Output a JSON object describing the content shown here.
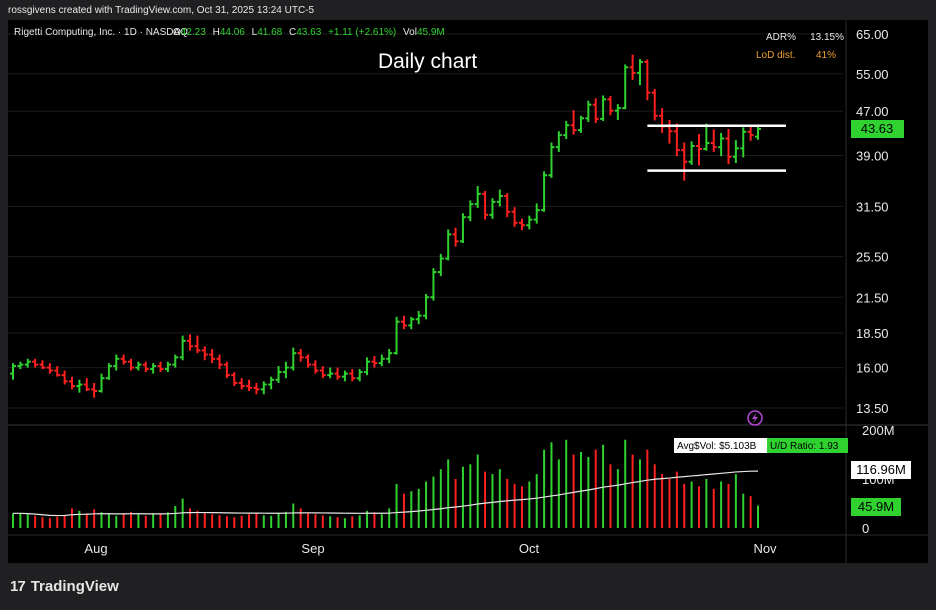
{
  "header": {
    "attribution": "rossgivens created with TradingView.com, Oct 31, 2025 13:24 UTC-5"
  },
  "legend": {
    "symbol": "Rigetti Computing, Inc. · 1D · NASDAQ",
    "o_label": "O",
    "o": "42.23",
    "h_label": "H",
    "h": "44.06",
    "l_label": "L",
    "l": "41.68",
    "c_label": "C",
    "c": "43.63",
    "change": "+1.11 (+2.61%)",
    "vol_label": "Vol",
    "vol": "45.9M"
  },
  "annotation": "Daily chart",
  "stats": {
    "adr_label": "ADR%",
    "adr": "13.15%",
    "lod_label": "LoD dist.",
    "lod": "41%"
  },
  "footer": {
    "brand": "TradingView"
  },
  "colors": {
    "up": "#2fd22f",
    "down": "#ff2020",
    "bg": "#000000",
    "price_tag": "#2fd22f",
    "lod": "#f0a030",
    "ma": "#e8e8e8",
    "level_lines": "#ffffff"
  },
  "chart_data": {
    "type": "ohlc",
    "price_scale": "log",
    "price_ticks": [
      "65.00",
      "55.00",
      "47.00",
      "39.00",
      "31.50",
      "25.50",
      "21.50",
      "18.50",
      "16.00",
      "13.50"
    ],
    "price_tick_values": [
      65,
      55,
      47,
      39,
      31.5,
      25.5,
      21.5,
      18.5,
      16,
      13.5
    ],
    "last_price_label": "43.63",
    "x_ticks": [
      "Aug",
      "Sep",
      "Oct",
      "Nov"
    ],
    "volume_ticks": [
      "200M",
      "100M",
      "0"
    ],
    "volume_tick_values": [
      200,
      100,
      0
    ],
    "avg_vol_label": "Avg$Vol: $5.103B",
    "ud_ratio_label": "U/D Ratio: 1.93",
    "volume_ma_label": "116.96M",
    "last_volume_label": "45.9M",
    "horizontal_levels": [
      44.2,
      36.6
    ],
    "bars_ohlc": [
      [
        15.6,
        16.3,
        15.2,
        16.1
      ],
      [
        16.1,
        16.4,
        15.9,
        16.2
      ],
      [
        16.2,
        16.6,
        16.0,
        16.4
      ],
      [
        16.4,
        16.6,
        16.0,
        16.2
      ],
      [
        16.2,
        16.5,
        15.9,
        16.0
      ],
      [
        16.0,
        16.3,
        15.6,
        15.8
      ],
      [
        15.8,
        16.1,
        15.4,
        15.5
      ],
      [
        15.5,
        15.8,
        14.9,
        15.1
      ],
      [
        15.1,
        15.4,
        14.6,
        14.8
      ],
      [
        14.8,
        15.2,
        14.4,
        14.9
      ],
      [
        14.9,
        15.3,
        14.5,
        14.6
      ],
      [
        14.6,
        15.0,
        14.1,
        14.5
      ],
      [
        14.5,
        15.6,
        14.4,
        15.3
      ],
      [
        15.3,
        16.3,
        15.2,
        16.1
      ],
      [
        16.1,
        16.9,
        15.8,
        16.6
      ],
      [
        16.6,
        16.9,
        16.2,
        16.4
      ],
      [
        16.4,
        16.6,
        15.8,
        16.0
      ],
      [
        16.0,
        16.4,
        15.8,
        16.2
      ],
      [
        16.2,
        16.4,
        15.7,
        15.9
      ],
      [
        15.9,
        16.3,
        15.6,
        16.1
      ],
      [
        16.1,
        16.4,
        15.7,
        15.9
      ],
      [
        15.9,
        16.4,
        15.7,
        16.2
      ],
      [
        16.2,
        16.9,
        16.0,
        16.7
      ],
      [
        16.7,
        18.3,
        16.5,
        17.9
      ],
      [
        17.9,
        18.4,
        17.2,
        17.5
      ],
      [
        17.5,
        18.3,
        17.0,
        17.2
      ],
      [
        17.2,
        17.5,
        16.5,
        16.9
      ],
      [
        16.9,
        17.3,
        16.3,
        16.6
      ],
      [
        16.6,
        16.9,
        15.9,
        16.2
      ],
      [
        16.2,
        16.4,
        15.3,
        15.5
      ],
      [
        15.5,
        15.7,
        14.8,
        15.0
      ],
      [
        15.0,
        15.3,
        14.6,
        14.8
      ],
      [
        14.8,
        15.2,
        14.5,
        14.7
      ],
      [
        14.7,
        15.0,
        14.3,
        14.6
      ],
      [
        14.6,
        15.1,
        14.3,
        14.9
      ],
      [
        14.9,
        15.4,
        14.6,
        15.2
      ],
      [
        15.2,
        16.1,
        15.0,
        15.7
      ],
      [
        15.7,
        16.4,
        15.3,
        16.0
      ],
      [
        16.0,
        17.4,
        15.8,
        17.0
      ],
      [
        17.0,
        17.3,
        16.4,
        16.7
      ],
      [
        16.7,
        16.9,
        16.0,
        16.2
      ],
      [
        16.2,
        16.5,
        15.6,
        15.8
      ],
      [
        15.8,
        16.1,
        15.3,
        15.5
      ],
      [
        15.5,
        16.0,
        15.3,
        15.6
      ],
      [
        15.6,
        16.0,
        15.2,
        15.4
      ],
      [
        15.4,
        15.8,
        15.1,
        15.6
      ],
      [
        15.6,
        15.9,
        15.1,
        15.3
      ],
      [
        15.3,
        15.9,
        15.1,
        15.7
      ],
      [
        15.7,
        16.7,
        15.5,
        16.4
      ],
      [
        16.4,
        16.8,
        16.0,
        16.3
      ],
      [
        16.3,
        16.9,
        16.1,
        16.6
      ],
      [
        16.6,
        17.3,
        16.3,
        17.0
      ],
      [
        17.0,
        19.8,
        16.9,
        19.4
      ],
      [
        19.4,
        19.9,
        18.8,
        19.1
      ],
      [
        19.1,
        19.8,
        18.8,
        19.6
      ],
      [
        19.6,
        20.3,
        19.2,
        19.9
      ],
      [
        19.9,
        21.8,
        19.6,
        21.5
      ],
      [
        21.5,
        24.3,
        21.2,
        23.9
      ],
      [
        23.9,
        25.8,
        23.5,
        25.3
      ],
      [
        25.3,
        28.6,
        25.1,
        28.0
      ],
      [
        28.0,
        28.8,
        26.6,
        27.2
      ],
      [
        27.2,
        30.6,
        27.0,
        30.1
      ],
      [
        30.1,
        32.3,
        29.6,
        31.8
      ],
      [
        31.8,
        34.3,
        31.3,
        33.2
      ],
      [
        33.2,
        33.6,
        29.8,
        30.4
      ],
      [
        30.4,
        32.6,
        29.9,
        32.1
      ],
      [
        32.1,
        33.8,
        31.5,
        32.9
      ],
      [
        32.9,
        33.3,
        30.1,
        30.8
      ],
      [
        30.8,
        31.4,
        28.9,
        29.4
      ],
      [
        29.4,
        29.9,
        28.5,
        29.1
      ],
      [
        29.1,
        30.3,
        28.6,
        29.8
      ],
      [
        29.8,
        31.9,
        29.3,
        31.0
      ],
      [
        31.0,
        36.5,
        30.8,
        35.9
      ],
      [
        35.9,
        41.2,
        35.5,
        40.4
      ],
      [
        40.4,
        43.2,
        39.6,
        42.5
      ],
      [
        42.5,
        45.1,
        41.8,
        44.3
      ],
      [
        44.3,
        47.2,
        42.6,
        43.4
      ],
      [
        43.4,
        46.1,
        42.9,
        45.6
      ],
      [
        45.6,
        49.1,
        44.9,
        48.3
      ],
      [
        48.3,
        49.6,
        44.7,
        45.5
      ],
      [
        45.5,
        50.2,
        45.1,
        49.4
      ],
      [
        49.4,
        50.1,
        46.2,
        47.1
      ],
      [
        47.1,
        48.4,
        45.3,
        47.6
      ],
      [
        47.6,
        57.2,
        47.4,
        56.5
      ],
      [
        56.5,
        59.6,
        53.6,
        55.2
      ],
      [
        55.2,
        58.5,
        52.4,
        57.8
      ],
      [
        57.8,
        58.4,
        49.2,
        50.8
      ],
      [
        50.8,
        51.6,
        45.2,
        46.1
      ],
      [
        46.1,
        47.6,
        42.9,
        44.1
      ],
      [
        44.1,
        45.3,
        41.0,
        43.2
      ],
      [
        43.2,
        44.6,
        38.9,
        39.9
      ],
      [
        39.9,
        41.2,
        35.1,
        38.0
      ],
      [
        38.0,
        41.4,
        37.5,
        40.6
      ],
      [
        40.6,
        42.7,
        37.4,
        40.1
      ],
      [
        40.1,
        44.6,
        39.8,
        41.1
      ],
      [
        41.1,
        43.5,
        39.6,
        40.4
      ],
      [
        40.4,
        42.9,
        38.9,
        41.9
      ],
      [
        41.9,
        43.6,
        37.6,
        38.8
      ],
      [
        38.8,
        41.6,
        37.8,
        40.2
      ],
      [
        40.2,
        43.9,
        38.7,
        43.1
      ],
      [
        43.1,
        44.3,
        41.5,
        42.5
      ],
      [
        42.23,
        44.06,
        41.68,
        43.63
      ]
    ],
    "volume": [
      30,
      30,
      28,
      25,
      22,
      20,
      23,
      26,
      40,
      35,
      30,
      38,
      32,
      28,
      25,
      30,
      33,
      28,
      25,
      30,
      28,
      32,
      45,
      60,
      40,
      35,
      32,
      28,
      26,
      24,
      22,
      25,
      28,
      30,
      26,
      25,
      30,
      33,
      50,
      40,
      32,
      28,
      26,
      24,
      22,
      20,
      24,
      26,
      35,
      32,
      28,
      40,
      90,
      70,
      75,
      80,
      95,
      105,
      120,
      140,
      100,
      125,
      130,
      150,
      115,
      110,
      120,
      100,
      90,
      85,
      95,
      110,
      160,
      175,
      140,
      180,
      150,
      155,
      145,
      160,
      170,
      130,
      120,
      180,
      150,
      140,
      160,
      130,
      110,
      100,
      115,
      90,
      95,
      85,
      100,
      80,
      95,
      90,
      110,
      70,
      65,
      45.9
    ]
  }
}
